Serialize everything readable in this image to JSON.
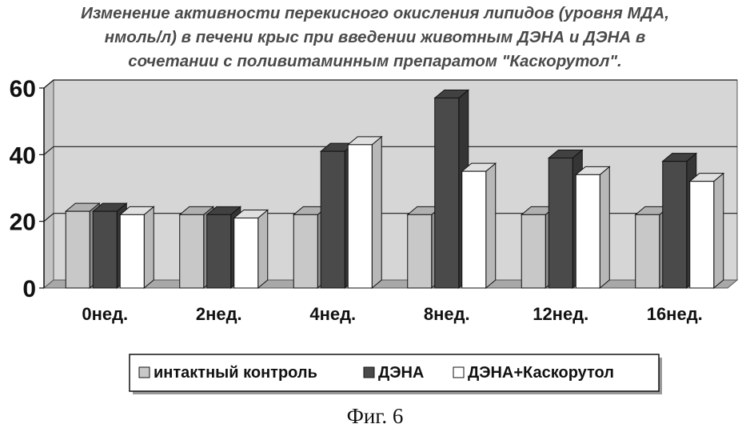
{
  "chart_data": {
    "type": "bar",
    "title_lines": [
      "Изменение активности перекисного окисления липидов (уровня МДА,",
      "нмоль/л) в печени крыс при введении животным ДЭНА и ДЭНА в",
      "сочетании с поливитаминным препаратом \"Каскорутол\"."
    ],
    "categories": [
      "0нед.",
      "2нед.",
      "4нед.",
      "8нед.",
      "12нед.",
      "16нед."
    ],
    "series": [
      {
        "name": "интактный контроль",
        "values": [
          23,
          22,
          22,
          22,
          22,
          22
        ],
        "color": "#c8c8c8"
      },
      {
        "name": "ДЭНА",
        "values": [
          23,
          22,
          41,
          57,
          39,
          38
        ],
        "color": "#4a4a4a"
      },
      {
        "name": "ДЭНА+Каскорутол",
        "values": [
          22,
          21,
          43,
          35,
          34,
          32
        ],
        "color": "#ffffff"
      }
    ],
    "yticks": [
      0,
      20,
      40,
      60
    ],
    "ylim": [
      0,
      60
    ],
    "grid": true,
    "legend_position": "bottom",
    "plot_background": "#d6d6d6",
    "floor_color": "#a8a8a8"
  },
  "figure_caption": "Фиг. 6"
}
